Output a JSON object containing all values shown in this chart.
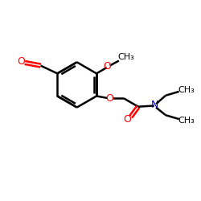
{
  "background": "#ffffff",
  "bond_color": "#000000",
  "bond_lw": 1.8,
  "o_color": "#ff0000",
  "n_color": "#0000cc",
  "text_color": "#000000",
  "figsize": [
    2.5,
    2.5
  ],
  "dpi": 100,
  "xlim": [
    0,
    10
  ],
  "ylim": [
    0,
    10
  ]
}
